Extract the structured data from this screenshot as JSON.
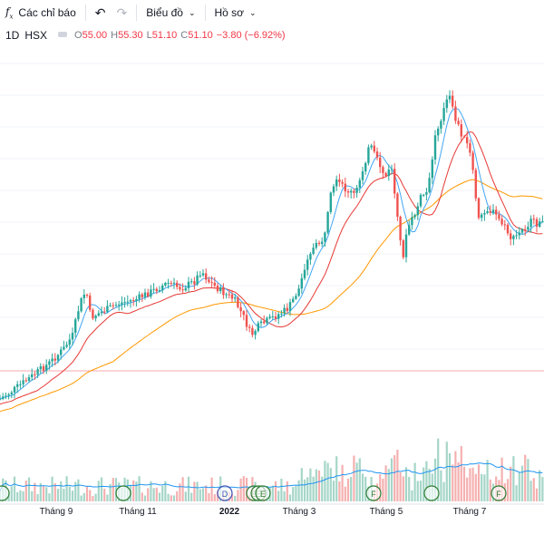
{
  "toolbar": {
    "indicators_label": "Các chỉ báo",
    "chart_label": "Biểu đồ",
    "profile_label": "Hồ sơ"
  },
  "legend": {
    "interval": "1D",
    "exchange": "HSX",
    "open": "55.00",
    "high": "55.30",
    "low": "51.10",
    "close": "51.10",
    "change": "−3.80 (−6.92%)"
  },
  "colors": {
    "up": "#26a69a",
    "down": "#ef5350",
    "ma_fast": "#42a5f5",
    "ma_mid": "#e53935",
    "ma_slow": "#ff9800",
    "volume_ma": "#2196f3",
    "baseline": "#f7a8b0",
    "dividend_marker": "#00897b",
    "split_marker": "#3f51b5"
  },
  "chart_data": {
    "type": "candlestick",
    "x_tick_labels": [
      "Tháng 9",
      "Tháng 11",
      "2022",
      "Tháng 3",
      "Tháng 5",
      "Tháng 7"
    ],
    "date_range": [
      "2021-07",
      "2022-08"
    ],
    "series": [
      {
        "name": "",
        "role": "price",
        "style": "candles"
      },
      {
        "name": "",
        "role": "moving-average-fast",
        "color": "#42a5f5"
      },
      {
        "name": "",
        "role": "moving-average-mid",
        "color": "#e53935"
      },
      {
        "name": "",
        "role": "moving-average-slow",
        "color": "#ff9800"
      },
      {
        "name": "",
        "role": "volume",
        "style": "bars"
      },
      {
        "name": "",
        "role": "volume-moving-average",
        "color": "#2196f3"
      }
    ],
    "markers": [
      {
        "letter": "",
        "period": "Jul 2021"
      },
      {
        "letter": "",
        "period": "Oct 2021"
      },
      {
        "letter": "D",
        "period": "Dec 2021"
      },
      {
        "letter": "E",
        "period": "Jan 2022"
      },
      {
        "letter": "E",
        "period": "Jan 2022"
      },
      {
        "letter": "E",
        "period": "Jan 2022"
      },
      {
        "letter": "F",
        "period": "Apr 2022"
      },
      {
        "letter": "",
        "period": "Jun 2022"
      },
      {
        "letter": "F",
        "period": "Jul 2022"
      }
    ],
    "y_axis_labels": "not visible (axis cropped)",
    "grid": true,
    "legend": "top-left"
  }
}
